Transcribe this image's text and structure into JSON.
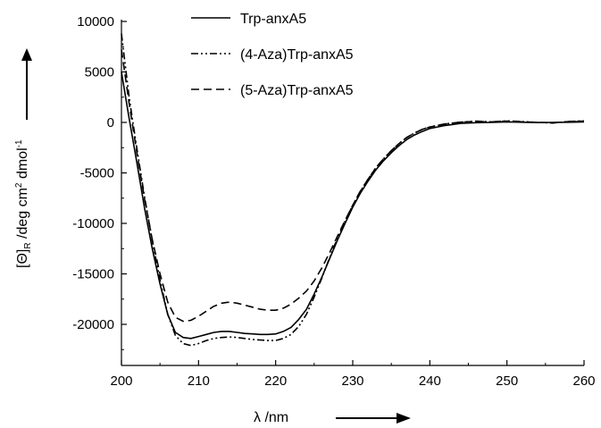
{
  "chart_data": {
    "type": "line",
    "xlabel": "λ /nm",
    "ylabel": "[Θ]R /deg cm2 dmol-1",
    "ylabel_parts": {
      "theta": "[Θ]",
      "sub_r": "R",
      "mid": " /deg cm",
      "sup_2": "2",
      "mid2": " dmol",
      "sup_neg1": "-1"
    },
    "xlim": [
      200,
      260
    ],
    "ylim": [
      -24000,
      10000
    ],
    "x_ticks": [
      200,
      210,
      220,
      230,
      240,
      250,
      260
    ],
    "y_ticks": [
      10000,
      5000,
      0,
      -5000,
      -10000,
      -15000,
      -20000
    ],
    "legend_position": "top-center",
    "grid": false,
    "series": [
      {
        "name": "Trp-anxA5",
        "style": "solid",
        "x": [
          200,
          201,
          202,
          203,
          204,
          205,
          206,
          207,
          208,
          209,
          210,
          211,
          212,
          213,
          214,
          215,
          216,
          217,
          218,
          219,
          220,
          221,
          222,
          223,
          224,
          225,
          226,
          227,
          228,
          229,
          230,
          231,
          232,
          233,
          234,
          235,
          236,
          237,
          238,
          239,
          240,
          242,
          244,
          246,
          248,
          250,
          252,
          254,
          256,
          258,
          260
        ],
        "values": [
          5000,
          400,
          -4000,
          -8500,
          -12500,
          -16000,
          -19000,
          -20800,
          -21300,
          -21400,
          -21200,
          -21000,
          -20800,
          -20700,
          -20700,
          -20800,
          -20900,
          -20950,
          -21000,
          -21000,
          -20950,
          -20700,
          -20300,
          -19500,
          -18500,
          -17000,
          -15300,
          -13500,
          -11700,
          -10000,
          -8400,
          -7000,
          -5800,
          -4700,
          -3800,
          -3000,
          -2300,
          -1700,
          -1250,
          -900,
          -600,
          -300,
          -100,
          -30,
          0,
          50,
          20,
          -20,
          0,
          20,
          40
        ]
      },
      {
        "name": "(4-Aza)Trp-anxA5",
        "style": "dash-dot-dot",
        "x": [
          200,
          201,
          202,
          203,
          204,
          205,
          206,
          207,
          208,
          209,
          210,
          211,
          212,
          213,
          214,
          215,
          216,
          217,
          218,
          219,
          220,
          221,
          222,
          223,
          224,
          225,
          226,
          227,
          228,
          229,
          230,
          231,
          232,
          233,
          234,
          235,
          236,
          237,
          238,
          239,
          240,
          242,
          244,
          246,
          248,
          250,
          252,
          254,
          256,
          258,
          260
        ],
        "values": [
          8800,
          2500,
          -2600,
          -7400,
          -11700,
          -15600,
          -19000,
          -21100,
          -21900,
          -22100,
          -21900,
          -21600,
          -21400,
          -21300,
          -21250,
          -21300,
          -21400,
          -21500,
          -21550,
          -21600,
          -21600,
          -21400,
          -21000,
          -20200,
          -19000,
          -17300,
          -15400,
          -13400,
          -11500,
          -9800,
          -8200,
          -6800,
          -5600,
          -4500,
          -3600,
          -2800,
          -2100,
          -1500,
          -1050,
          -700,
          -450,
          -150,
          30,
          120,
          50,
          150,
          80,
          0,
          -60,
          100,
          150
        ]
      },
      {
        "name": "(5-Aza)Trp-anxA5",
        "style": "dash",
        "x": [
          200,
          201,
          202,
          203,
          204,
          205,
          206,
          207,
          208,
          209,
          210,
          211,
          212,
          213,
          214,
          215,
          216,
          217,
          218,
          219,
          220,
          221,
          222,
          223,
          224,
          225,
          226,
          227,
          228,
          229,
          230,
          231,
          232,
          233,
          234,
          235,
          236,
          237,
          238,
          239,
          240,
          242,
          244,
          246,
          248,
          250,
          252,
          254,
          256,
          258,
          260
        ],
        "values": [
          7200,
          1900,
          -3000,
          -7600,
          -11600,
          -15000,
          -17800,
          -19300,
          -19700,
          -19600,
          -19200,
          -18700,
          -18200,
          -17900,
          -17800,
          -17900,
          -18100,
          -18300,
          -18500,
          -18600,
          -18600,
          -18400,
          -18000,
          -17400,
          -16700,
          -15700,
          -14400,
          -12900,
          -11300,
          -9700,
          -8200,
          -6800,
          -5600,
          -4500,
          -3600,
          -2800,
          -2100,
          -1500,
          -1050,
          -700,
          -450,
          -150,
          30,
          100,
          50,
          130,
          60,
          0,
          -30,
          80,
          120
        ]
      }
    ]
  }
}
